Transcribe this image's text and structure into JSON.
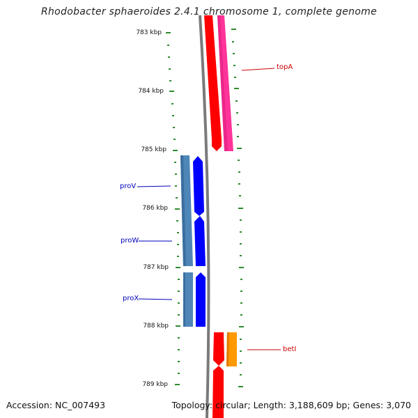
{
  "title": "Rhodobacter sphaeroides 2.4.1 chromosome 1, complete genome",
  "footer": {
    "accession": "Accession: NC_007493",
    "summary": "Topology: circular; Length: 3,188,609 bp; Genes: 3,070"
  },
  "scale_labels": [
    "783 kbp",
    "784 kbp",
    "785 kbp",
    "786 kbp",
    "787 kbp",
    "788 kbp",
    "789 kbp"
  ],
  "genes": [
    {
      "name": "topA",
      "strand": "forward",
      "color": "#cc0000"
    },
    {
      "name": "proV",
      "strand": "reverse",
      "color": "#0000bb"
    },
    {
      "name": "proW",
      "strand": "reverse",
      "color": "#0000bb"
    },
    {
      "name": "proX",
      "strand": "reverse",
      "color": "#0000bb"
    },
    {
      "name": "betI",
      "strand": "forward",
      "color": "#cc0000"
    }
  ],
  "colors": {
    "backbone": "#808080",
    "cds_red": "#ff0000",
    "cds_pink": "#ff3399",
    "cds_blue": "#0000ff",
    "cds_steelblue": "#4682b4",
    "cds_orange": "#ff9900",
    "tick_green": "#2e8b2e"
  }
}
